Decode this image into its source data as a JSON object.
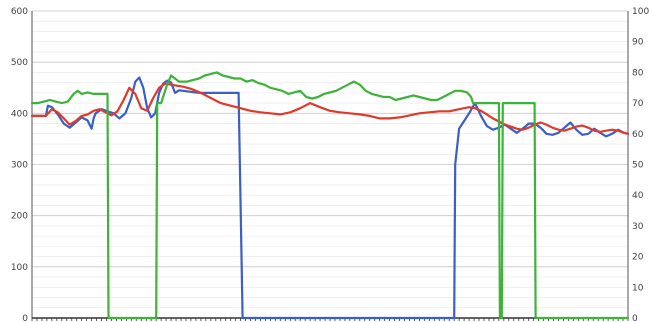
{
  "chart_data": {
    "type": "line",
    "title": "",
    "xlabel": "",
    "ylabel": "",
    "ylim": [
      0,
      600
    ],
    "y_ticks": [
      "0",
      "100",
      "200",
      "300",
      "400",
      "500",
      "600"
    ],
    "y2lim": [
      0,
      100
    ],
    "y2_ticks": [
      "0",
      "10",
      "20",
      "30",
      "40",
      "50",
      "60",
      "70",
      "80",
      "90",
      "100"
    ],
    "xlim": [
      0,
      600
    ],
    "grid": true,
    "legend": "none",
    "series": [
      {
        "color": "#3a5fc8",
        "axis": "left",
        "x": [
          0,
          14,
          16,
          20,
          26,
          32,
          38,
          44,
          50,
          56,
          60,
          62,
          64,
          70,
          76,
          82,
          88,
          94,
          100,
          104,
          108,
          112,
          116,
          120,
          124,
          128,
          132,
          136,
          140,
          144,
          148,
          152,
          156,
          160,
          164,
          170,
          176,
          182,
          190,
          196,
          200,
          204,
          208,
          212,
          216,
          220,
          224,
          230,
          240,
          250,
          260,
          270,
          280,
          290,
          300,
          310,
          320,
          330,
          340,
          350,
          360,
          370,
          380,
          390,
          400,
          410,
          420,
          425,
          426,
          430,
          435,
          440,
          446,
          452,
          458,
          464,
          470,
          476,
          482,
          488,
          494,
          500,
          506,
          512,
          518,
          524,
          530,
          536,
          542,
          548,
          554,
          560,
          566,
          572,
          578,
          584,
          590,
          596,
          600
        ],
        "y": [
          395,
          395,
          415,
          412,
          398,
          380,
          372,
          382,
          392,
          386,
          370,
          390,
          400,
          408,
          404,
          400,
          390,
          400,
          430,
          462,
          470,
          450,
          410,
          392,
          400,
          440,
          458,
          464,
          460,
          440,
          445,
          444,
          443,
          442,
          441,
          440,
          440,
          440,
          440,
          440,
          440,
          440,
          440,
          0,
          0,
          0,
          0,
          0,
          0,
          0,
          0,
          0,
          0,
          0,
          0,
          0,
          0,
          0,
          0,
          0,
          0,
          0,
          0,
          0,
          0,
          0,
          0,
          0,
          300,
          370,
          385,
          400,
          420,
          395,
          375,
          368,
          372,
          378,
          370,
          362,
          370,
          380,
          380,
          372,
          360,
          358,
          362,
          372,
          382,
          368,
          358,
          360,
          370,
          362,
          355,
          360,
          368,
          362,
          360
        ]
      },
      {
        "color": "#e03a2a",
        "axis": "left",
        "x": [
          0,
          14,
          20,
          26,
          32,
          38,
          44,
          50,
          56,
          62,
          68,
          74,
          80,
          86,
          92,
          98,
          104,
          110,
          116,
          122,
          128,
          134,
          140,
          146,
          152,
          160,
          170,
          180,
          190,
          200,
          210,
          220,
          230,
          240,
          250,
          260,
          270,
          280,
          290,
          300,
          310,
          320,
          330,
          340,
          350,
          360,
          370,
          380,
          390,
          400,
          410,
          420,
          430,
          440,
          446,
          452,
          458,
          464,
          470,
          476,
          482,
          488,
          494,
          500,
          506,
          512,
          518,
          524,
          530,
          536,
          542,
          548,
          554,
          560,
          566,
          572,
          578,
          584,
          590,
          596,
          600
        ],
        "y": [
          395,
          395,
          408,
          402,
          390,
          378,
          385,
          395,
          398,
          405,
          408,
          402,
          396,
          404,
          425,
          450,
          438,
          410,
          405,
          430,
          450,
          458,
          456,
          454,
          452,
          448,
          440,
          430,
          420,
          415,
          410,
          405,
          402,
          400,
          398,
          402,
          410,
          420,
          412,
          405,
          402,
          400,
          398,
          395,
          390,
          390,
          392,
          396,
          400,
          402,
          404,
          404,
          408,
          412,
          410,
          405,
          398,
          390,
          384,
          378,
          374,
          370,
          368,
          372,
          378,
          382,
          378,
          372,
          368,
          366,
          370,
          374,
          376,
          372,
          366,
          364,
          366,
          368,
          366,
          362,
          360
        ]
      },
      {
        "color": "#3db33a",
        "axis": "right",
        "x": [
          0,
          6,
          12,
          18,
          24,
          30,
          36,
          42,
          46,
          50,
          56,
          62,
          68,
          74,
          76,
          77,
          125,
          126,
          130,
          136,
          140,
          144,
          148,
          150,
          156,
          162,
          168,
          174,
          180,
          186,
          192,
          198,
          204,
          210,
          216,
          222,
          228,
          234,
          240,
          246,
          252,
          258,
          264,
          270,
          276,
          282,
          288,
          294,
          300,
          306,
          312,
          318,
          324,
          330,
          336,
          342,
          348,
          354,
          360,
          366,
          372,
          378,
          384,
          390,
          396,
          402,
          408,
          414,
          420,
          426,
          432,
          438,
          442,
          444,
          470,
          471,
          473,
          474,
          506,
          507,
          600
        ],
        "y": [
          70,
          70,
          70.5,
          71,
          70.5,
          70,
          70.5,
          73,
          74,
          73,
          73.5,
          73,
          73,
          73,
          73,
          0,
          0,
          70,
          70,
          76,
          79,
          78,
          77,
          77,
          77,
          77.5,
          78,
          79,
          79.5,
          80,
          79,
          78.5,
          78,
          78,
          77,
          77.5,
          76.5,
          76,
          75,
          74.5,
          74,
          73,
          73.5,
          74,
          72,
          71.5,
          72,
          73,
          73.5,
          74,
          75,
          76,
          77,
          76,
          74,
          73,
          72.5,
          72,
          72,
          71,
          71.5,
          72,
          72.5,
          72,
          71.5,
          71,
          71,
          72,
          73,
          74,
          74,
          73.5,
          72,
          70,
          70,
          0,
          0,
          70,
          70,
          0,
          0
        ]
      }
    ]
  }
}
